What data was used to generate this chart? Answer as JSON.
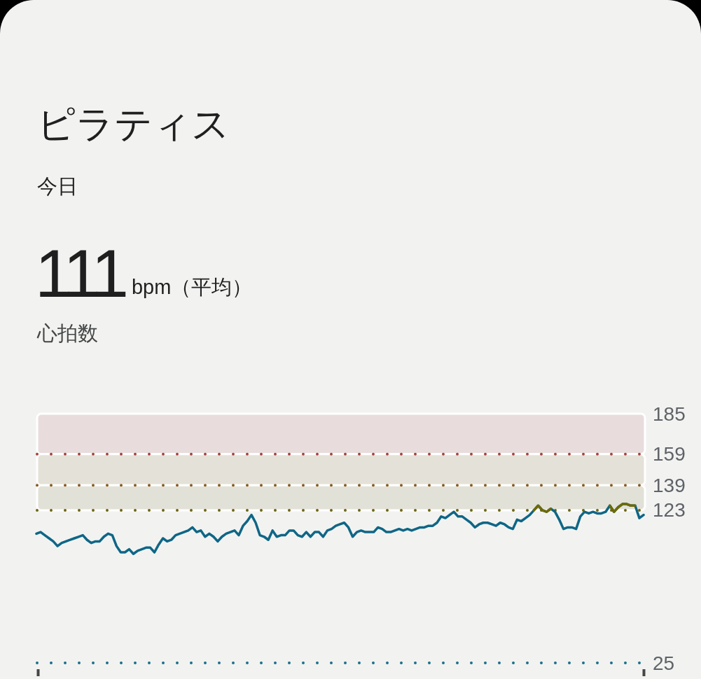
{
  "chart_data": {
    "type": "line",
    "title": "ピラティス",
    "subtitle": "今日",
    "annotations": [
      "111",
      "bpm（平均）",
      "心拍数"
    ],
    "categories": [
      null,
      null,
      null,
      null,
      null,
      null,
      null,
      null,
      null,
      null,
      null,
      null,
      null,
      null,
      null,
      null,
      null,
      null,
      null,
      null,
      null,
      null,
      null,
      null,
      null,
      null,
      null,
      null,
      null,
      null,
      null,
      null,
      null,
      null,
      null,
      null,
      null,
      null,
      null,
      null,
      null,
      null,
      null,
      null,
      null,
      null,
      null,
      null,
      null,
      null,
      null,
      null,
      null,
      null,
      null,
      null,
      null,
      null,
      null,
      null,
      null,
      null,
      null,
      null,
      null,
      null,
      null,
      null,
      null,
      null,
      null,
      null,
      null,
      null,
      null,
      null,
      null,
      null,
      null,
      null,
      null,
      null,
      null,
      null,
      null,
      null,
      null,
      null,
      null,
      null,
      null,
      null,
      null,
      null,
      null,
      null,
      null,
      null,
      null,
      null,
      null,
      null,
      null,
      null,
      null,
      null,
      null,
      null,
      null,
      null,
      null,
      null,
      null,
      null,
      null,
      null,
      null,
      null,
      null,
      null,
      null,
      null,
      null,
      null,
      null,
      null,
      null,
      null,
      null,
      null,
      null,
      null,
      null,
      null,
      null,
      null,
      null,
      null,
      null,
      null,
      null,
      null,
      null,
      null,
      null
    ],
    "series": [
      {
        "color": "#0f6686",
        "values": [
          108,
          109,
          107,
          105,
          103,
          100,
          102,
          103,
          104,
          105,
          106,
          107,
          104,
          102,
          103,
          103,
          106,
          108,
          107,
          100,
          96,
          96,
          98,
          95,
          97,
          98,
          99,
          99,
          96,
          101,
          105,
          103,
          104,
          107,
          108,
          109,
          110,
          112,
          109,
          110,
          106,
          108,
          106,
          103,
          106,
          108,
          109,
          110,
          107,
          113,
          116,
          120,
          115,
          107,
          106,
          104,
          110,
          106,
          107,
          107,
          110,
          110,
          107,
          106,
          109,
          106,
          109,
          109,
          106,
          110,
          111,
          113,
          114,
          115,
          112,
          106,
          109,
          110,
          109,
          109,
          109,
          112,
          111,
          109,
          109,
          110,
          111,
          110,
          111,
          110,
          111,
          112,
          112,
          113,
          113,
          115,
          119,
          118,
          120,
          122,
          119,
          119,
          117,
          115,
          112,
          114,
          115,
          115,
          114,
          113,
          115,
          114,
          112,
          111,
          117,
          116,
          118,
          120,
          123,
          126,
          123,
          122,
          124,
          122,
          117,
          111,
          112,
          112,
          111,
          119,
          122,
          121,
          122,
          121,
          121,
          122,
          126,
          122,
          125,
          127,
          127,
          126,
          126,
          118,
          120
        ]
      },
      {
        "color": "#6e6a06",
        "values": [
          null,
          null,
          null,
          null,
          null,
          null,
          null,
          null,
          null,
          null,
          null,
          null,
          null,
          null,
          null,
          null,
          null,
          null,
          null,
          null,
          null,
          null,
          null,
          null,
          null,
          null,
          null,
          null,
          null,
          null,
          null,
          null,
          null,
          null,
          null,
          null,
          null,
          null,
          null,
          null,
          null,
          null,
          null,
          null,
          null,
          null,
          null,
          null,
          null,
          null,
          null,
          null,
          null,
          null,
          null,
          null,
          null,
          null,
          null,
          null,
          null,
          null,
          null,
          null,
          null,
          null,
          null,
          null,
          null,
          null,
          null,
          null,
          null,
          null,
          null,
          null,
          null,
          null,
          null,
          null,
          null,
          null,
          null,
          null,
          null,
          null,
          null,
          null,
          null,
          null,
          null,
          null,
          null,
          null,
          null,
          null,
          null,
          null,
          null,
          null,
          null,
          null,
          null,
          null,
          null,
          null,
          null,
          null,
          null,
          null,
          null,
          null,
          null,
          null,
          null,
          null,
          null,
          null,
          123,
          126,
          123,
          122,
          124,
          null,
          null,
          null,
          null,
          null,
          null,
          null,
          null,
          null,
          null,
          null,
          null,
          null,
          null,
          null,
          null,
          null,
          null,
          null,
          null,
          null,
          null
        ]
      },
      {
        "color": "#6e6a06",
        "values": [
          null,
          null,
          null,
          null,
          null,
          null,
          null,
          null,
          null,
          null,
          null,
          null,
          null,
          null,
          null,
          null,
          null,
          null,
          null,
          null,
          null,
          null,
          null,
          null,
          null,
          null,
          null,
          null,
          null,
          null,
          null,
          null,
          null,
          null,
          null,
          null,
          null,
          null,
          null,
          null,
          null,
          null,
          null,
          null,
          null,
          null,
          null,
          null,
          null,
          null,
          null,
          null,
          null,
          null,
          null,
          null,
          null,
          null,
          null,
          null,
          null,
          null,
          null,
          null,
          null,
          null,
          null,
          null,
          null,
          null,
          null,
          null,
          null,
          null,
          null,
          null,
          null,
          null,
          null,
          null,
          null,
          null,
          null,
          null,
          null,
          null,
          null,
          null,
          null,
          null,
          null,
          null,
          null,
          null,
          null,
          null,
          null,
          null,
          null,
          null,
          null,
          null,
          null,
          null,
          null,
          null,
          null,
          null,
          null,
          null,
          null,
          null,
          null,
          null,
          null,
          null,
          null,
          null,
          null,
          null,
          null,
          null,
          null,
          null,
          null,
          null,
          null,
          null,
          null,
          null,
          null,
          null,
          null,
          null,
          null,
          null,
          126,
          122,
          125,
          127,
          127,
          126,
          126,
          null,
          null
        ]
      }
    ],
    "ylim": [
      25,
      185
    ],
    "yticks": [
      185,
      159,
      139,
      123,
      25
    ],
    "tick_labels": "y",
    "bands": [
      {
        "axis": "y",
        "from": 159,
        "to": 185,
        "color": "#e9dcdc"
      },
      {
        "axis": "y",
        "from": 139,
        "to": 159,
        "color": "#e4e1d8"
      },
      {
        "axis": "y",
        "from": 123,
        "to": 139,
        "color": "#e1e1d7"
      }
    ],
    "ref_lines": [
      {
        "axis": "y",
        "value": 159,
        "color": "#a3443f",
        "line_style": "dotted"
      },
      {
        "axis": "y",
        "value": 139,
        "color": "#8a5a1c",
        "line_style": "dotted"
      },
      {
        "axis": "y",
        "value": 123,
        "color": "#6e6414",
        "line_style": "dotted"
      },
      {
        "axis": "y",
        "value": 25,
        "color": "#1b6f8c",
        "line_style": "dotted"
      }
    ]
  }
}
